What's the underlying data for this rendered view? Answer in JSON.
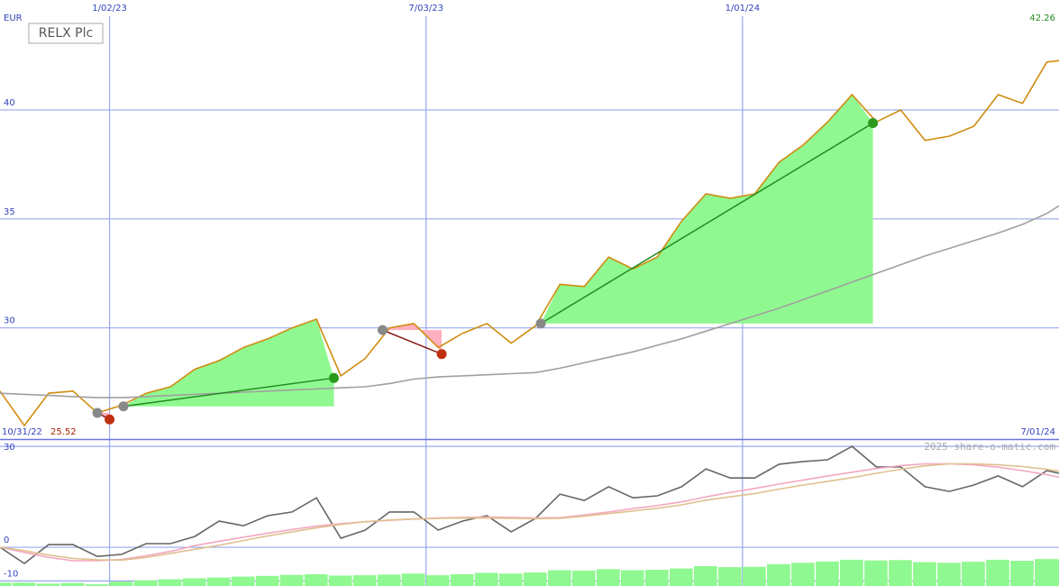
{
  "chart_data": [
    {
      "type": "line",
      "title": "RELX Plc",
      "currency": "EUR",
      "last_value": 42.26,
      "low_value": 25.52,
      "x": [
        "10/31/22",
        "11/14/22",
        "11/28/22",
        "12/12/22",
        "12/26/22",
        "1/09/23",
        "1/23/23",
        "2/06/23",
        "2/20/23",
        "3/06/23",
        "3/20/23",
        "4/03/23",
        "4/17/23",
        "5/01/23",
        "5/15/23",
        "5/29/23",
        "6/12/23",
        "6/26/23",
        "7/10/23",
        "7/24/23",
        "8/07/23",
        "8/21/23",
        "9/04/23",
        "9/18/23",
        "10/02/23",
        "10/16/23",
        "10/30/23",
        "11/13/23",
        "11/27/23",
        "12/11/23",
        "12/25/23",
        "1/08/24",
        "1/22/24",
        "2/05/24",
        "2/19/24",
        "3/04/24",
        "3/18/24",
        "4/01/24",
        "4/15/24",
        "4/29/24",
        "5/13/24",
        "5/27/24",
        "6/10/24",
        "6/24/24",
        "7/01/24"
      ],
      "series": [
        {
          "color": "#d08c10",
          "values": [
            27.1,
            25.52,
            27.0,
            27.1,
            26.1,
            26.45,
            27.0,
            27.3,
            28.1,
            28.5,
            29.1,
            29.5,
            30.0,
            30.4,
            27.8,
            28.6,
            30.0,
            30.2,
            29.1,
            29.75,
            30.2,
            29.3,
            30.1,
            32.0,
            31.9,
            33.25,
            32.7,
            33.25,
            34.9,
            36.15,
            35.95,
            36.15,
            37.6,
            38.4,
            39.45,
            40.7,
            39.45,
            40.0,
            38.6,
            38.8,
            39.25,
            40.7,
            40.3,
            42.2,
            42.26
          ]
        },
        {
          "color": "#a0a0a0",
          "values": [
            27.0,
            26.95,
            26.9,
            26.85,
            26.8,
            26.8,
            26.85,
            26.9,
            26.95,
            27.0,
            27.05,
            27.1,
            27.15,
            27.2,
            27.25,
            27.3,
            27.45,
            27.65,
            27.75,
            27.8,
            27.85,
            27.9,
            27.95,
            28.15,
            28.4,
            28.65,
            28.9,
            29.2,
            29.5,
            29.85,
            30.2,
            30.55,
            30.9,
            31.3,
            31.7,
            32.1,
            32.5,
            32.9,
            33.3,
            33.65,
            34.0,
            34.35,
            34.75,
            35.25,
            35.6
          ]
        }
      ],
      "entry_color": "#888888",
      "trades": [
        {
          "entry": "12/26/22",
          "entry_price": 26.1,
          "exit": "1/02/23",
          "exit_price": 25.8,
          "fill": "#ffb0c0",
          "line": "#8b1a1a",
          "dot": "#c03010"
        },
        {
          "entry": "1/10/23",
          "entry_price": 26.4,
          "exit": "5/11/23",
          "exit_price": 27.7,
          "fill": "#90f890",
          "line": "#228b22",
          "dot": "#2a9a1a"
        },
        {
          "entry": "6/08/23",
          "entry_price": 29.9,
          "exit": "7/12/23",
          "exit_price": 28.8,
          "fill": "#ffb0c0",
          "line": "#8b1a1a",
          "dot": "#c03010"
        },
        {
          "entry": "9/07/23",
          "entry_price": 30.2,
          "exit": "3/16/24",
          "exit_price": 39.4,
          "fill": "#90f890",
          "line": "#228b22",
          "dot": "#2a9a1a"
        }
      ],
      "xlim": [
        "10/31/22",
        "7/01/24"
      ],
      "xticks": [
        "1/02/23",
        "7/03/23",
        "1/01/24"
      ],
      "ylim": [
        24.9,
        44.3
      ],
      "yticks": [
        30,
        35,
        40
      ],
      "grid": true
    },
    {
      "type": "line",
      "series": [
        {
          "color": "#666666",
          "values": [
            0,
            -4.8,
            0.8,
            0.8,
            -2.7,
            -2.1,
            1.1,
            1.1,
            3.2,
            7.8,
            6.4,
            9.4,
            10.5,
            14.7,
            2.7,
            5.1,
            10.5,
            10.5,
            5.1,
            7.8,
            9.4,
            4.6,
            8.6,
            15.8,
            13.9,
            18,
            14.7,
            15.3,
            18,
            23.3,
            20.6,
            20.6,
            24.7,
            25.5,
            26,
            30,
            23.9,
            23.9,
            18,
            16.6,
            18.5,
            21.2,
            18,
            22.8,
            22
          ]
        },
        {
          "color": "#f4a8c0",
          "values": [
            0,
            -1.5,
            -3,
            -4,
            -4,
            -3.6,
            -2.5,
            -1.2,
            0.5,
            1.8,
            3,
            4.2,
            5.3,
            6.3,
            7,
            7.6,
            8,
            8.4,
            8.7,
            8.9,
            9,
            8.9,
            8.7,
            8.8,
            9.6,
            10.5,
            11.5,
            12.4,
            13.5,
            15,
            16.3,
            17.5,
            18.8,
            20,
            21.2,
            22.3,
            23.4,
            24.3,
            24.8,
            24.8,
            24.5,
            23.8,
            22.8,
            21.6,
            20.8
          ]
        },
        {
          "color": "#e0c090",
          "values": [
            0,
            -1,
            -2.3,
            -3.3,
            -3.7,
            -3.8,
            -3,
            -1.8,
            -0.6,
            0.6,
            2,
            3.4,
            4.6,
            5.8,
            6.8,
            7.6,
            8.1,
            8.4,
            8.6,
            8.7,
            8.7,
            8.6,
            8.5,
            8.6,
            9.3,
            10,
            10.8,
            11.6,
            12.6,
            14,
            15,
            16,
            17.3,
            18.5,
            19.6,
            20.7,
            22,
            23.2,
            24.2,
            24.8,
            24.8,
            24.5,
            24,
            23.2,
            22.6
          ]
        }
      ],
      "bars": {
        "color": "#90f890",
        "values": [
          -10.5,
          -10.5,
          -10.8,
          -10.6,
          -11,
          -10.2,
          -9.8,
          -9.5,
          -9.2,
          -9,
          -8.7,
          -8.5,
          -8.2,
          -8,
          -8.4,
          -8.3,
          -8.1,
          -7.8,
          -8.3,
          -8,
          -7.6,
          -7.8,
          -7.5,
          -6.8,
          -6.9,
          -6.5,
          -6.8,
          -6.7,
          -6.3,
          -5.6,
          -5.9,
          -5.8,
          -5,
          -4.6,
          -4.2,
          -3.7,
          -3.9,
          -3.8,
          -4.4,
          -4.6,
          -4.3,
          -3.7,
          -4,
          -3.5,
          -3.6
        ]
      },
      "ylim": [
        -11.5,
        31.9
      ],
      "yticks": [
        30,
        0,
        -10
      ],
      "grid": true
    }
  ],
  "footer": "2025 share-o-matic.com"
}
